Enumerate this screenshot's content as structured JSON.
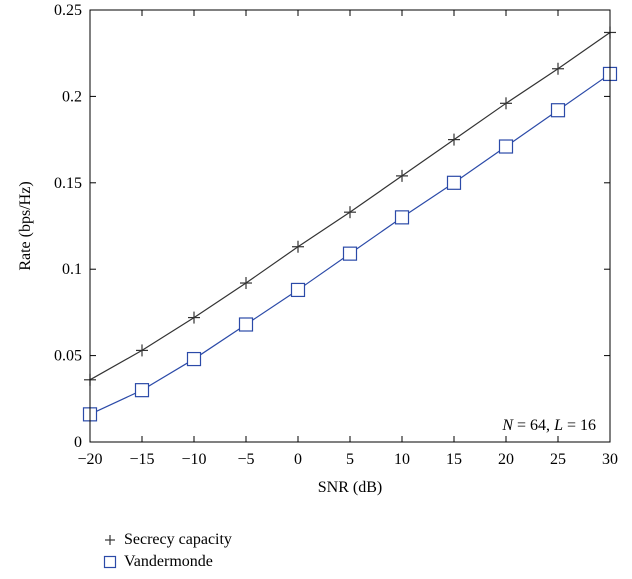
{
  "chart_data": {
    "type": "line",
    "xlabel": "SNR (dB)",
    "ylabel": "Rate (bps/Hz)",
    "xlim": [
      -20,
      30
    ],
    "ylim": [
      0,
      0.25
    ],
    "x_ticks": [
      -20,
      -15,
      -10,
      -5,
      0,
      5,
      10,
      15,
      20,
      25,
      30
    ],
    "x_tick_labels": [
      "−20",
      "−15",
      "−10",
      "−5",
      "0",
      "5",
      "10",
      "15",
      "20",
      "25",
      "30"
    ],
    "y_ticks": [
      0,
      0.05,
      0.1,
      0.15,
      0.2,
      0.25
    ],
    "y_tick_labels": [
      "0",
      "0.05",
      "0.1",
      "0.15",
      "0.2",
      "0.25"
    ],
    "grid": false,
    "legend_position": "below-left",
    "annotation": "N = 64, L = 16",
    "x": [
      -20,
      -15,
      -10,
      -5,
      0,
      5,
      10,
      15,
      20,
      25,
      30
    ],
    "series": [
      {
        "name": "Secrecy capacity",
        "marker": "plus",
        "color": "#333333",
        "values": [
          0.036,
          0.053,
          0.072,
          0.092,
          0.113,
          0.133,
          0.154,
          0.175,
          0.196,
          0.216,
          0.237
        ]
      },
      {
        "name": "Vandermonde",
        "marker": "square",
        "color": "#2b4aa8",
        "values": [
          0.016,
          0.03,
          0.048,
          0.068,
          0.088,
          0.109,
          0.13,
          0.15,
          0.171,
          0.192,
          0.213
        ]
      }
    ]
  }
}
